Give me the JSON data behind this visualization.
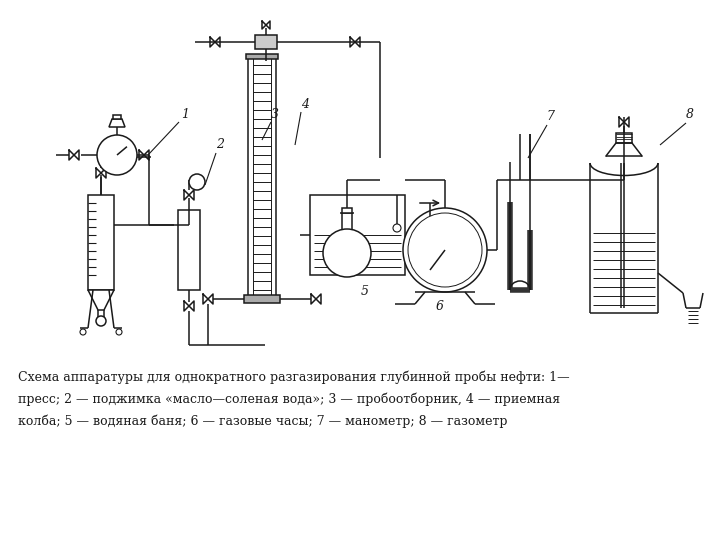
{
  "bg_color": "#ffffff",
  "line_color": "#1a1a1a",
  "caption_line1": "Схема аппаратуры для однократного разгазирования глубинной пробы нефти: 1—",
  "caption_line2": "пресс; 2 — поджимка «масло—соленая вода»; 3 — пробоотборник, 4 — приемная",
  "caption_line3": "колба; 5 — водяная баня; 6 — газовые часы; 7 — манометр; 8 — газометр",
  "caption_fontsize": 9.0,
  "fig_width": 7.2,
  "fig_height": 5.4
}
